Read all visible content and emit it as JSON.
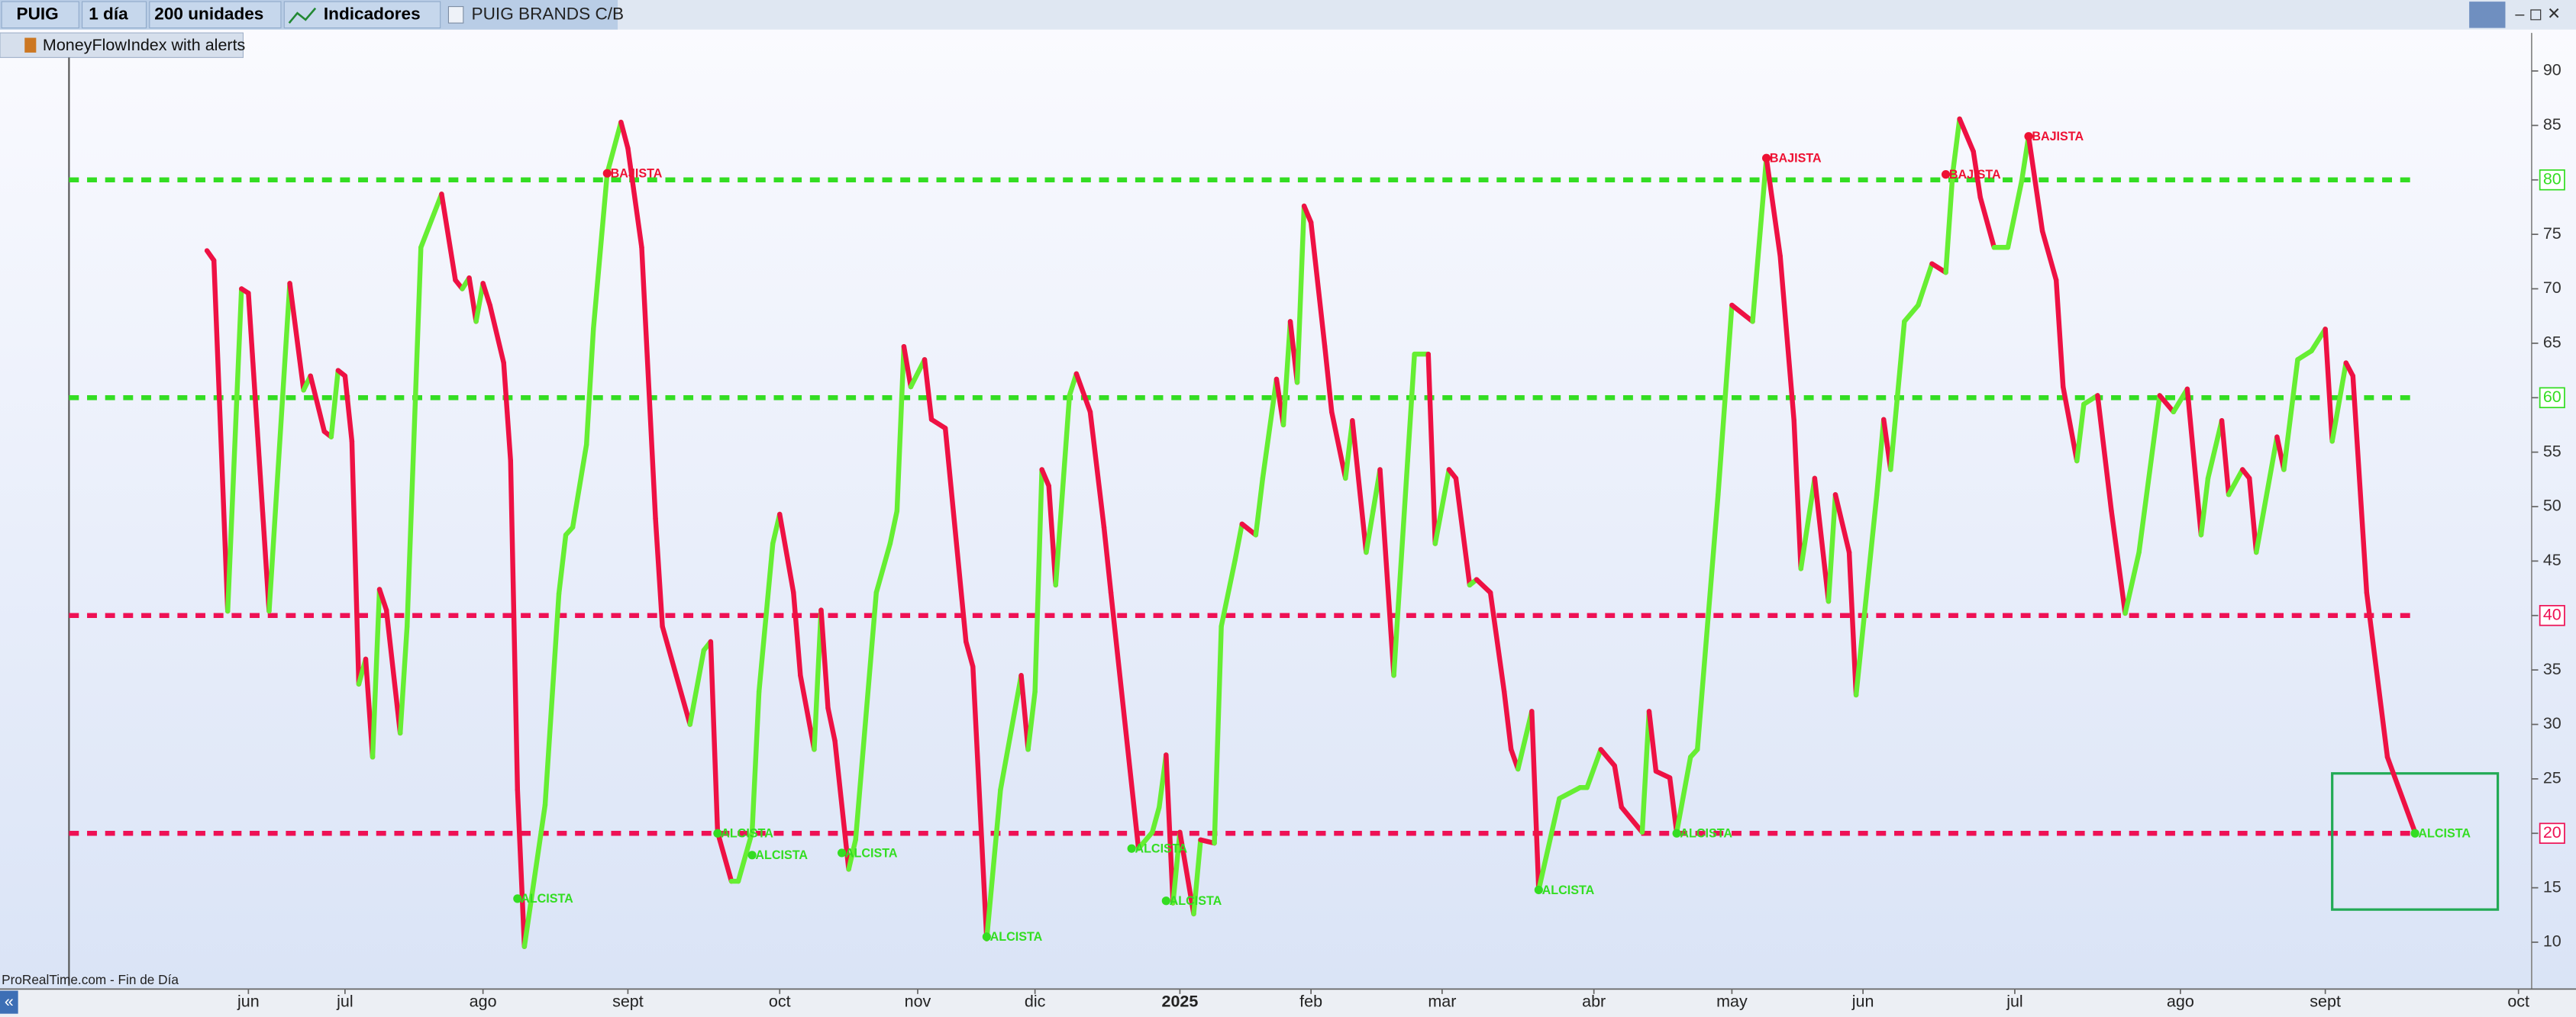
{
  "toolbar": {
    "symbol": "PUIG",
    "period": "1 día",
    "units": "200 unidades",
    "indicators": "Indicadores",
    "instrument": "PUIG BRANDS C/B"
  },
  "indicator_label": "MoneyFlowIndex with alerts",
  "footer": "ProRealTime.com - Fin de Día",
  "chart_data": {
    "type": "line",
    "up_color": "#66ee33",
    "down_color": "#ee1144",
    "x": [
      20,
      21,
      23,
      25,
      26,
      29,
      32,
      34,
      35,
      37,
      38,
      39,
      40,
      41,
      42,
      43,
      44,
      45,
      46,
      48,
      49,
      51,
      54,
      56,
      57,
      58,
      59,
      60,
      61,
      63,
      64,
      65,
      66,
      69,
      71,
      72,
      73,
      75,
      76,
      78,
      80,
      81,
      83,
      85,
      86,
      88,
      90,
      92,
      93,
      94,
      96,
      97,
      99,
      100,
      102,
      103,
      105,
      106,
      108,
      109,
      110,
      111,
      113,
      114,
      117,
      119,
      120,
      121,
      122,
      124,
      125,
      127,
      130,
      131,
      133,
      135,
      138,
      139,
      140,
      141,
      142,
      143,
      145,
      146,
      148,
      150,
      151,
      155,
      157,
      158,
      159,
      160,
      161,
      163,
      164,
      166,
      167,
      169,
      170,
      172,
      173,
      175,
      176,
      177,
      178,
      179,
      180,
      182,
      183,
      185,
      186,
      188,
      189,
      190,
      192,
      194,
      195,
      197,
      198,
      200,
      201,
      203,
      204,
      206,
      208,
      209,
      210,
      212,
      213,
      216,
      219,
      220,
      222,
      224,
      225,
      228,
      229,
      230,
      232,
      233,
      235,
      236,
      239,
      241,
      244,
      246,
      248,
      250,
      251,
      253,
      255,
      256,
      258,
      259,
      262,
      263,
      264,
      266,
      268,
      270,
      272,
      273,
      274,
      276,
      277,
      279,
      281,
      283,
      284,
      286,
      288,
      289,
      291,
      292,
      294,
      296,
      298,
      300,
      303,
      305,
      307,
      309,
      310,
      312,
      313,
      315,
      316,
      317,
      320,
      321,
      323,
      325,
      327,
      328,
      330,
      331,
      333,
      336,
      340
    ],
    "values": [
      73.5,
      72.6,
      40.4,
      70,
      69.6,
      40.4,
      70.5,
      60.7,
      62,
      56.9,
      56.4,
      62.5,
      62,
      56,
      33.7,
      36,
      27,
      42.4,
      40.5,
      29.2,
      39,
      73.8,
      78.7,
      70.8,
      70,
      71,
      67,
      70.5,
      68.5,
      63.2,
      54.2,
      24,
      9.6,
      22.6,
      42,
      47.4,
      48.1,
      55.7,
      66.3,
      80.6,
      85.3,
      82.9,
      73.8,
      48.9,
      39,
      34.5,
      30,
      36.8,
      37.6,
      20.1,
      15.6,
      15.6,
      20.1,
      33,
      46.6,
      49.3,
      42.1,
      34.5,
      27.7,
      40.5,
      31.5,
      28.5,
      16.7,
      19.4,
      42.1,
      46.6,
      49.6,
      64.7,
      61,
      63.5,
      58,
      57.2,
      37.6,
      35.3,
      10.3,
      24,
      34.5,
      27.7,
      33,
      53.4,
      51.9,
      42.8,
      60.2,
      62.2,
      58.7,
      48.1,
      42.1,
      18.6,
      20.1,
      22.4,
      27.2,
      13.6,
      20.1,
      12.6,
      19.4,
      19.1,
      39,
      45.1,
      48.4,
      47.4,
      52.6,
      61.7,
      57.5,
      67,
      61.4,
      77.6,
      76.1,
      64.7,
      58.7,
      52.6,
      57.9,
      45.8,
      49.6,
      53.4,
      34.5,
      54.2,
      64,
      64,
      46.6,
      53.4,
      52.6,
      42.8,
      43.3,
      42.1,
      33,
      27.7,
      25.9,
      31.2,
      14.8,
      23.2,
      24.2,
      24.2,
      27.7,
      26.2,
      22.4,
      20.1,
      31.2,
      25.7,
      25.1,
      20.1,
      27,
      27.7,
      51.1,
      68.5,
      67,
      82,
      73,
      57.9,
      44.3,
      52.6,
      41.3,
      51.1,
      45.8,
      32.7,
      51.1,
      58,
      53.4,
      67,
      68.5,
      72.3,
      71.5,
      80.6,
      85.6,
      82.6,
      78.4,
      73.8,
      73.8,
      79.9,
      84,
      75.3,
      70.8,
      61,
      54.2,
      59.4,
      60.2,
      49.6,
      40.2,
      45.8,
      60.2,
      58.7,
      60.8,
      47.4,
      52.6,
      57.9,
      51.1,
      53.4,
      52.6,
      45.8,
      56.4,
      53.4,
      63.5,
      64.3,
      66.3,
      56,
      63.2,
      62,
      42.1,
      27,
      20.1
    ],
    "levels": [
      {
        "value": 80,
        "color": "#33dd22"
      },
      {
        "value": 60,
        "color": "#33dd22"
      },
      {
        "value": 40,
        "color": "#ee1155"
      },
      {
        "value": 20,
        "color": "#ee1155"
      }
    ],
    "alerts": [
      {
        "x": 65,
        "value": 14,
        "label": "ALCISTA",
        "color": "#33dd22"
      },
      {
        "x": 78,
        "value": 80.6,
        "label": "BAJISTA",
        "color": "#ee1133"
      },
      {
        "x": 94,
        "value": 20,
        "label": "ALCISTA",
        "color": "#33dd22"
      },
      {
        "x": 99,
        "value": 18,
        "label": "ALCISTA",
        "color": "#33dd22"
      },
      {
        "x": 112,
        "value": 18.2,
        "label": "ALCISTA",
        "color": "#33dd22"
      },
      {
        "x": 133,
        "value": 10.5,
        "label": "ALCISTA",
        "color": "#33dd22"
      },
      {
        "x": 154,
        "value": 18.6,
        "label": "ALCISTA",
        "color": "#33dd22"
      },
      {
        "x": 159,
        "value": 13.8,
        "label": "ALCISTA",
        "color": "#33dd22"
      },
      {
        "x": 213,
        "value": 14.8,
        "label": "ALCISTA",
        "color": "#33dd22"
      },
      {
        "x": 233,
        "value": 20,
        "label": "ALCISTA",
        "color": "#33dd22"
      },
      {
        "x": 246,
        "value": 82,
        "label": "BAJISTA",
        "color": "#ee1133"
      },
      {
        "x": 272,
        "value": 80.5,
        "label": "BAJISTA",
        "color": "#ee1133"
      },
      {
        "x": 284,
        "value": 84,
        "label": "BAJISTA",
        "color": "#ee1133"
      },
      {
        "x": 340,
        "value": 20,
        "label": "ALCISTA",
        "color": "#33dd22"
      }
    ],
    "highlight_box": {
      "x": [
        328,
        352
      ],
      "y": [
        13,
        25.5
      ],
      "color": "#22aa55"
    },
    "xlim": [
      0,
      357
    ],
    "ylim": [
      6,
      93.5
    ],
    "yticks": [
      10,
      15,
      20,
      25,
      30,
      35,
      40,
      45,
      50,
      55,
      60,
      65,
      70,
      75,
      80,
      85,
      90
    ],
    "xticks": [
      {
        "value": 26,
        "label": "jun"
      },
      {
        "value": 40,
        "label": "jul"
      },
      {
        "value": 60,
        "label": "ago"
      },
      {
        "value": 81,
        "label": "sept"
      },
      {
        "value": 103,
        "label": "oct"
      },
      {
        "value": 123,
        "label": "nov"
      },
      {
        "value": 140,
        "label": "dic"
      },
      {
        "value": 161,
        "label": "2025"
      },
      {
        "value": 180,
        "label": "feb"
      },
      {
        "value": 199,
        "label": "mar"
      },
      {
        "value": 221,
        "label": "abr"
      },
      {
        "value": 241,
        "label": "may"
      },
      {
        "value": 260,
        "label": "jun"
      },
      {
        "value": 282,
        "label": "jul"
      },
      {
        "value": 306,
        "label": "ago"
      },
      {
        "value": 327,
        "label": "sept"
      },
      {
        "value": 355,
        "label": "oct"
      }
    ]
  }
}
